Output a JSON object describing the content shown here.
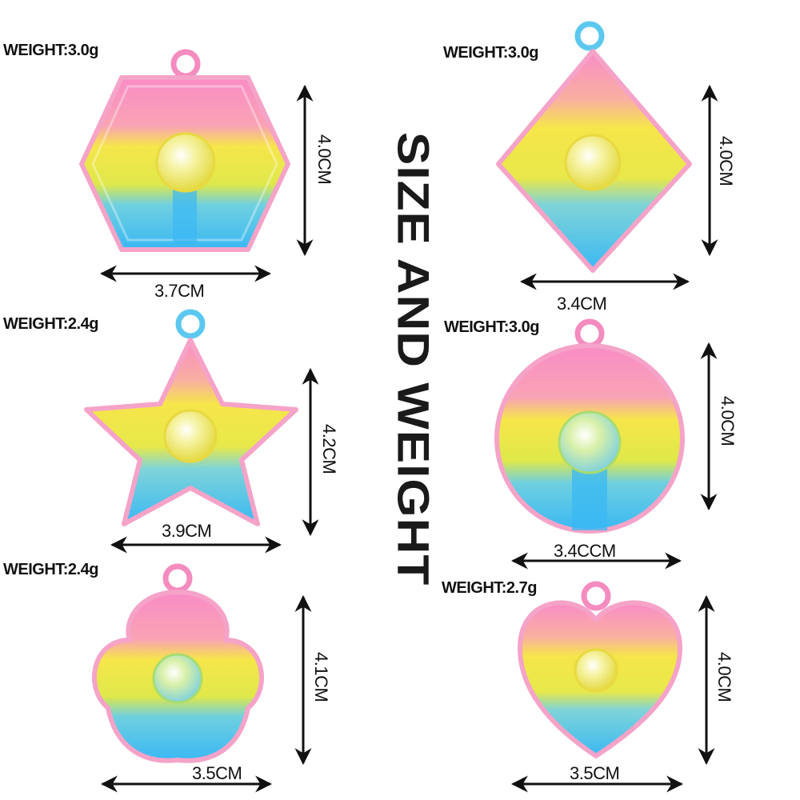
{
  "heading": "SIZE AND WEIGHT",
  "colors": {
    "pink": "#f78fc0",
    "yellow": "#f5ea3a",
    "blue": "#3dbff2",
    "outline_pink": "#f5a8c8",
    "outline_blue": "#5cc8f0"
  },
  "items": [
    {
      "shape": "hexagon",
      "weight": "WEIGHT:3.0g",
      "width": "3.7CM",
      "height": "4.0CM"
    },
    {
      "shape": "diamond",
      "weight": "WEIGHT:3.0g",
      "width": "3.4CM",
      "height": "4.0CM"
    },
    {
      "shape": "star",
      "weight": "WEIGHT:2.4g",
      "width": "3.9CM",
      "height": "4.2CM"
    },
    {
      "shape": "circle",
      "weight": "WEIGHT:3.0g",
      "width": "3.4CCM",
      "height": "4.0CM"
    },
    {
      "shape": "clover",
      "weight": "WEIGHT:2.4g",
      "width": "3.5CM",
      "height": "4.1CM"
    },
    {
      "shape": "heart",
      "weight": "WEIGHT:2.7g",
      "width": "3.5CM",
      "height": "4.0CM"
    }
  ]
}
